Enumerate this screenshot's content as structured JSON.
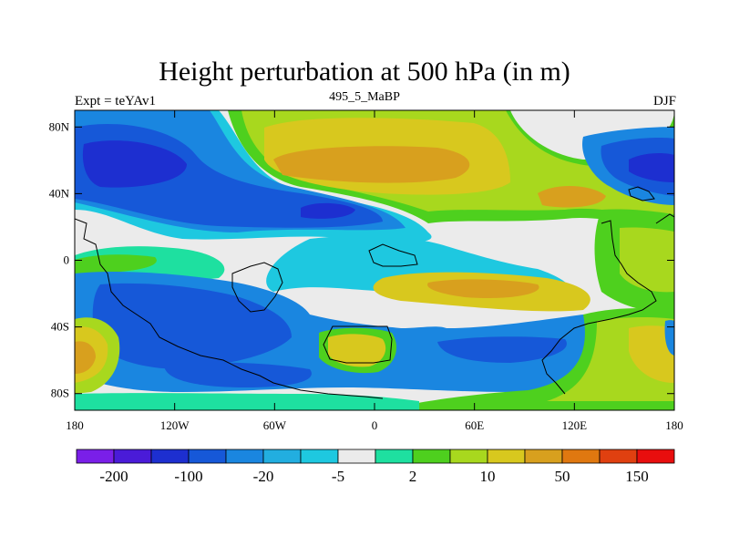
{
  "title": "Height perturbation at 500 hPa (in m)",
  "left_label": "Expt = teYAv1",
  "center_label": "495_5_MaBP",
  "right_label": "DJF",
  "lat_ticks": [
    {
      "value": 80,
      "label": "80N"
    },
    {
      "value": 40,
      "label": "40N"
    },
    {
      "value": 0,
      "label": "0"
    },
    {
      "value": -40,
      "label": "40S"
    },
    {
      "value": -80,
      "label": "80S"
    }
  ],
  "lon_ticks": [
    {
      "value": -180,
      "label": "180"
    },
    {
      "value": -120,
      "label": "120W"
    },
    {
      "value": -60,
      "label": "60W"
    },
    {
      "value": 0,
      "label": "0"
    },
    {
      "value": 60,
      "label": "60E"
    },
    {
      "value": 120,
      "label": "120E"
    },
    {
      "value": 180,
      "label": "180"
    }
  ],
  "colorbar": {
    "colors": [
      "#7a1fe8",
      "#4a1bd8",
      "#1d2fd0",
      "#1658d8",
      "#1a86e0",
      "#22aee0",
      "#1ec8e0",
      "#ebebeb",
      "#1ee0a0",
      "#4ed01e",
      "#a8d81e",
      "#d8c81e",
      "#d8a01e",
      "#e07810",
      "#e04010",
      "#e80e0e"
    ],
    "labels": [
      {
        "boundary": 1,
        "text": "-200"
      },
      {
        "boundary": 3,
        "text": "-100"
      },
      {
        "boundary": 5,
        "text": "-20"
      },
      {
        "boundary": 7,
        "text": "-5"
      },
      {
        "boundary": 9,
        "text": "2"
      },
      {
        "boundary": 11,
        "text": "10"
      },
      {
        "boundary": 13,
        "text": "50"
      },
      {
        "boundary": 15,
        "text": "150"
      }
    ]
  }
}
